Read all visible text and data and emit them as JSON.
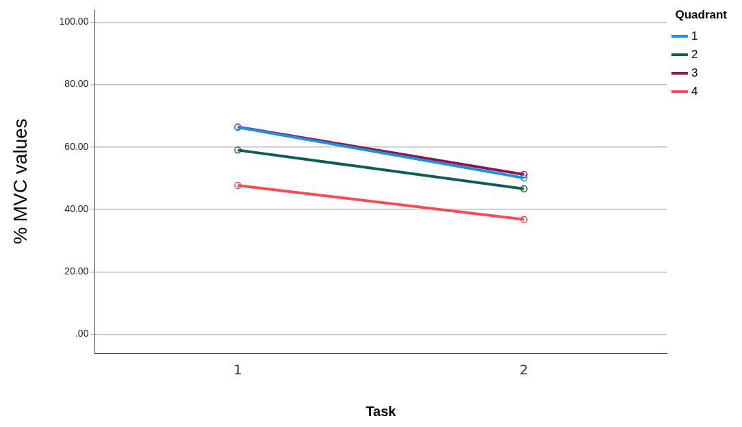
{
  "chart_data": {
    "type": "line",
    "xlabel": "Task",
    "ylabel": "% MVC values",
    "legend_title": "Quadrant",
    "categories": [
      "1",
      "2"
    ],
    "series": [
      {
        "name": "1",
        "color": "#1f8fe0",
        "values": [
          66.3,
          50.1
        ]
      },
      {
        "name": "2",
        "color": "#0e5c57",
        "values": [
          59.0,
          46.6
        ]
      },
      {
        "name": "3",
        "color": "#8c1450",
        "values": [
          66.4,
          51.2
        ]
      },
      {
        "name": "4",
        "color": "#fa4b55",
        "values": [
          47.7,
          36.8
        ]
      }
    ],
    "ylim": [
      -6,
      104
    ],
    "yticks": [
      {
        "value": 0,
        "label": ".00"
      },
      {
        "value": 20,
        "label": "20.00"
      },
      {
        "value": 40,
        "label": "40.00"
      },
      {
        "value": 60,
        "label": "60.00"
      },
      {
        "value": 80,
        "label": "80.00"
      },
      {
        "value": 100,
        "label": "100.00"
      }
    ],
    "grid": "y",
    "legend": "top right",
    "marker": "circle",
    "line_style": "solid"
  }
}
